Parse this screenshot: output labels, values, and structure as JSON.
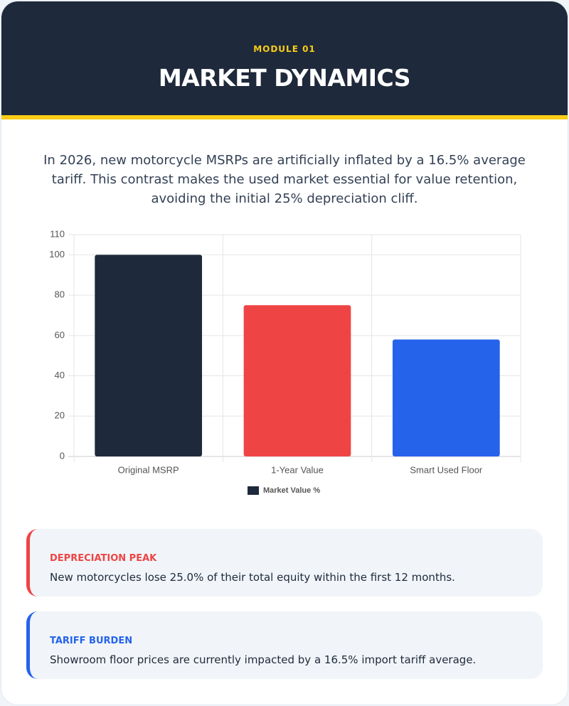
{
  "header": {
    "kicker": "MODULE 01",
    "title": "MARKET DYNAMICS"
  },
  "intro": "In 2026, new motorcycle MSRPs are artificially inflated by a 16.5% average tariff. This contrast makes the used market essential for value retention, avoiding the initial 25% depreciation cliff.",
  "chart_data": {
    "type": "bar",
    "categories": [
      "Original MSRP",
      "1-Year Value",
      "Smart Used Floor"
    ],
    "series": [
      {
        "name": "Market Value %",
        "colors": [
          "#1e293b",
          "#ef4444",
          "#2563eb"
        ],
        "values": [
          100,
          75,
          58
        ]
      }
    ],
    "ylim": [
      0,
      110
    ],
    "yticks": [
      0,
      20,
      40,
      60,
      80,
      100,
      110
    ],
    "grid": true,
    "legend": "bottom"
  },
  "cards": [
    {
      "label": "DEPRECIATION PEAK",
      "text": "New motorcycles lose 25.0% of their total equity within the first 12 months.",
      "color": "#ef4444"
    },
    {
      "label": "TARIFF BURDEN",
      "text": "Showroom floor prices are currently impacted by a 16.5% import tariff average.",
      "color": "#2563eb"
    }
  ]
}
